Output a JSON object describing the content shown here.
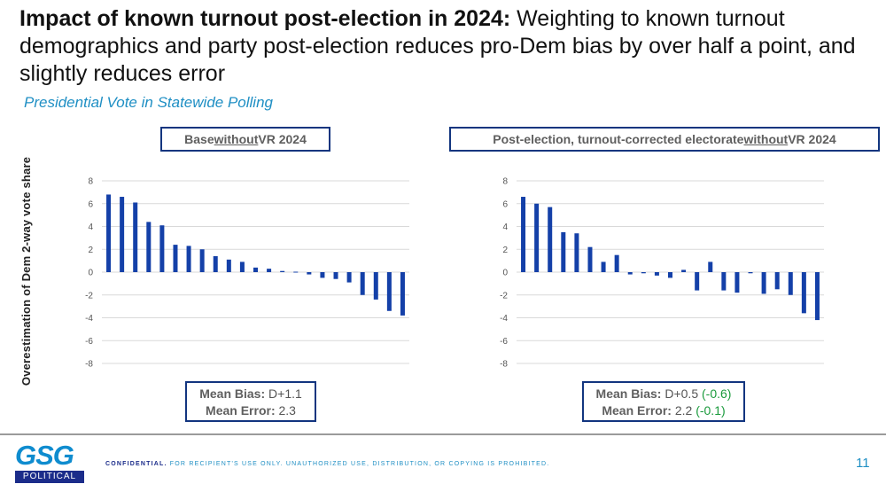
{
  "title_bold": "Impact of known turnout post-election in 2024:",
  "title_rest": " Weighting to known turnout demographics and party post-election reduces pro-Dem bias by over half a point, and slightly reduces error",
  "subtitle": "Presidential Vote in Statewide Polling",
  "y_axis_title": "Overestimation of Dem 2-way vote share",
  "left_panel": {
    "title_pre": "Base ",
    "title_underlined": "without",
    "title_post": " VR 2024",
    "bias_label": "Mean Bias:",
    "bias_value": " D+1.1",
    "error_label": "Mean Error:",
    "error_value": " 2.3"
  },
  "right_panel": {
    "title_pre": "Post-election, turnout-corrected electorate ",
    "title_underlined": "without",
    "title_post": " VR 2024",
    "bias_label": "Mean Bias:",
    "bias_value": " D+0.5 ",
    "bias_delta": "(-0.6)",
    "error_label": "Mean Error:",
    "error_value": " 2.2 ",
    "error_delta": "(-0.1)"
  },
  "colors": {
    "bar": "#1440a8",
    "accent": "#1f8fc4",
    "box_border": "#12357f",
    "delta_green": "#1a9a3c"
  },
  "footer": {
    "logo_text": "GSG",
    "logo_sub": "POLITICAL",
    "confidential_bold": "CONFIDENTIAL.",
    "confidential_rest": "  FOR RECIPIENT'S USE ONLY. UNAUTHORIZED USE, DISTRIBUTION, OR COPYING IS PROHIBITED.",
    "page_number": "11"
  },
  "chart_data": [
    {
      "type": "bar",
      "title": "Base without VR 2024",
      "ylabel": "Overestimation of Dem 2-way vote share",
      "ylim": [
        -8,
        8
      ],
      "yticks": [
        8,
        6,
        4,
        2,
        0,
        -2,
        -4,
        -6,
        -8
      ],
      "grid": true,
      "values": [
        6.8,
        6.6,
        6.1,
        4.4,
        4.1,
        2.4,
        2.3,
        2.0,
        1.4,
        1.1,
        0.9,
        0.4,
        0.3,
        0.1,
        0.0,
        -0.2,
        -0.5,
        -0.6,
        -0.9,
        -2.0,
        -2.4,
        -3.4,
        -3.8
      ]
    },
    {
      "type": "bar",
      "title": "Post-election, turnout-corrected electorate without VR 2024",
      "ylabel": "Overestimation of Dem 2-way vote share",
      "ylim": [
        -8,
        8
      ],
      "yticks": [
        8,
        6,
        4,
        2,
        0,
        -2,
        -4,
        -6,
        -8
      ],
      "grid": true,
      "values": [
        6.6,
        6.0,
        5.7,
        3.5,
        3.4,
        2.2,
        0.9,
        1.5,
        -0.2,
        -0.1,
        -0.3,
        -0.5,
        0.2,
        -1.6,
        0.9,
        -1.6,
        -1.8,
        -0.1,
        -1.9,
        -1.5,
        -2.0,
        -3.6,
        -4.2
      ]
    }
  ]
}
